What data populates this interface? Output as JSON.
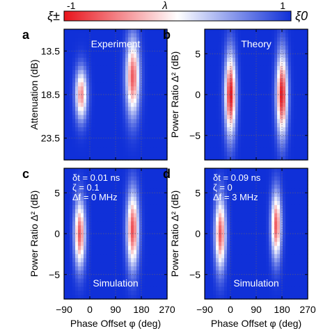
{
  "colorbar": {
    "symbol": "λ",
    "min_label": "-1",
    "max_label": "1",
    "left_end_label": "ξ±",
    "right_end_label": "ξ0",
    "colors": {
      "low": "#e8141c",
      "mid": "#ffffff",
      "high": "#1030d8"
    }
  },
  "chart_data": [
    {
      "type": "heatmap",
      "panel_letter": "a",
      "inset_label": "Experiment",
      "annotations": [],
      "xlim": [
        -90,
        270
      ],
      "xticks": [
        "-90",
        "0",
        "90",
        "180",
        "270"
      ],
      "xtick_labels_shown": false,
      "ylabel": "Attenuation (dB)",
      "ylim": [
        11,
        26
      ],
      "yticks": [
        "13.5",
        "18.5",
        "23.5"
      ],
      "ytick_values": [
        13.5,
        18.5,
        23.5
      ],
      "y_inverted": true,
      "grid": true,
      "value_range": [
        -1,
        1
      ],
      "background_value": 1,
      "spots": [
        {
          "x_center": -30,
          "y_center": 18.5,
          "x_sigma": 14,
          "y_sigma": 2.0,
          "min_value": -0.5
        },
        {
          "x_center": 150,
          "y_center": 16.5,
          "x_sigma": 16,
          "y_sigma": 3.0,
          "min_value": -0.7
        }
      ]
    },
    {
      "type": "heatmap",
      "panel_letter": "b",
      "inset_label": "Theory",
      "annotations": [],
      "xlim": [
        -90,
        270
      ],
      "xticks": [
        "-90",
        "0",
        "90",
        "180",
        "270"
      ],
      "xtick_labels_shown": false,
      "ylabel": "Power Ratio Δ² (dB)",
      "ylim": [
        -8,
        8
      ],
      "yticks": [
        "5",
        "0",
        "-5"
      ],
      "ytick_values": [
        5,
        0,
        -5
      ],
      "y_inverted": false,
      "grid": true,
      "value_range": [
        -1,
        1
      ],
      "background_value": 1,
      "spots": [
        {
          "x_center": 0,
          "y_center": 0,
          "x_sigma": 13,
          "y_sigma": 3.4,
          "min_value": -1
        },
        {
          "x_center": 180,
          "y_center": 0,
          "x_sigma": 13,
          "y_sigma": 3.4,
          "min_value": -1
        }
      ]
    },
    {
      "type": "heatmap",
      "panel_letter": "c",
      "inset_label": "Simulation",
      "annotations": [
        "δt = 0.01 ns",
        "ζ = 0.1",
        "Δf = 0 MHz"
      ],
      "xlim": [
        -90,
        270
      ],
      "xticks": [
        "-90",
        "0",
        "90",
        "180",
        "270"
      ],
      "xtick_labels_shown": true,
      "xlabel": "Phase Offset φ (deg)",
      "ylabel": "Power Ratio Δ² (dB)",
      "ylim": [
        -8,
        8
      ],
      "yticks": [
        "5",
        "0",
        "-5"
      ],
      "ytick_values": [
        5,
        0,
        -5
      ],
      "y_inverted": false,
      "grid": true,
      "value_range": [
        -1,
        1
      ],
      "background_value": 1,
      "spots": [
        {
          "x_center": -35,
          "y_center": 0,
          "x_sigma": 13,
          "y_sigma": 2.8,
          "min_value": -0.7
        },
        {
          "x_center": 150,
          "y_center": 0.5,
          "x_sigma": 14,
          "y_sigma": 3.2,
          "min_value": -0.75
        }
      ]
    },
    {
      "type": "heatmap",
      "panel_letter": "d",
      "inset_label": "Simulation",
      "annotations": [
        "δt = 0.09 ns",
        "ζ = 0",
        "Δf = 3 MHz"
      ],
      "xlim": [
        -90,
        270
      ],
      "xticks": [
        "-90",
        "0",
        "90",
        "180",
        "270"
      ],
      "xtick_labels_shown": true,
      "xlabel": "Phase Offset φ (deg)",
      "ylabel": "Power Ratio Δ² (dB)",
      "ylim": [
        -8,
        8
      ],
      "yticks": [
        "5",
        "0",
        "-5"
      ],
      "ytick_values": [
        5,
        0,
        -5
      ],
      "y_inverted": false,
      "grid": true,
      "value_range": [
        -1,
        1
      ],
      "background_value": 1,
      "spots": [
        {
          "x_center": -35,
          "y_center": 0,
          "x_sigma": 13,
          "y_sigma": 3.0,
          "min_value": -0.7
        },
        {
          "x_center": 160,
          "y_center": 1,
          "x_sigma": 12,
          "y_sigma": 2.8,
          "min_value": -0.7
        }
      ]
    }
  ]
}
